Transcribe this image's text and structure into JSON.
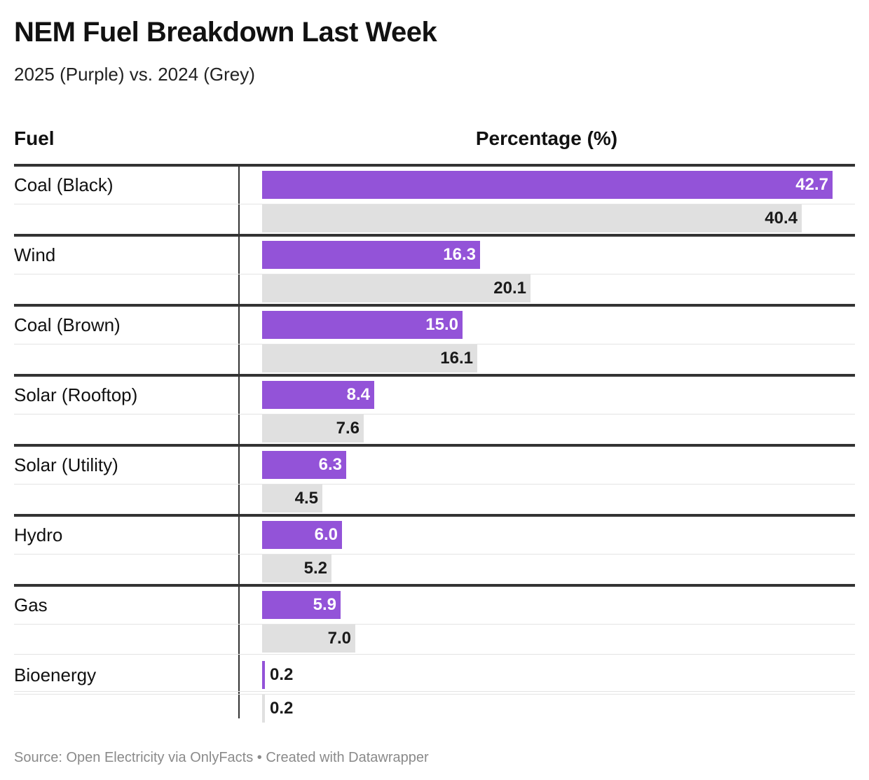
{
  "header": {
    "title": "NEM Fuel Breakdown Last Week",
    "subtitle": "2025 (Purple) vs. 2024 (Grey)"
  },
  "table": {
    "col_fuel": "Fuel",
    "col_percentage": "Percentage (%)"
  },
  "footer": {
    "source": "Source: Open Electricity via OnlyFacts • Created with Datawrapper"
  },
  "colors": {
    "series_2025": "#9353d8",
    "series_2024": "#e0e0e0"
  },
  "chart_data": {
    "type": "bar",
    "orientation": "horizontal",
    "title": "NEM Fuel Breakdown Last Week",
    "subtitle": "2025 (Purple) vs. 2024 (Grey)",
    "xlabel": "Percentage (%)",
    "ylabel": "Fuel",
    "categories": [
      "Coal (Black)",
      "Wind",
      "Coal (Brown)",
      "Solar (Rooftop)",
      "Solar (Utility)",
      "Hydro",
      "Gas",
      "Bioenergy"
    ],
    "series": [
      {
        "values": [
          42.7,
          16.3,
          15.0,
          8.4,
          6.3,
          6.0,
          5.9,
          0.2
        ],
        "color": "#9353d8"
      },
      {
        "values": [
          40.4,
          20.1,
          16.1,
          7.6,
          4.5,
          5.2,
          7.0,
          0.2
        ],
        "color": "#e0e0e0"
      }
    ],
    "xlim": [
      0,
      42.7
    ],
    "grid": false,
    "legend": "none",
    "data_labels": true
  }
}
